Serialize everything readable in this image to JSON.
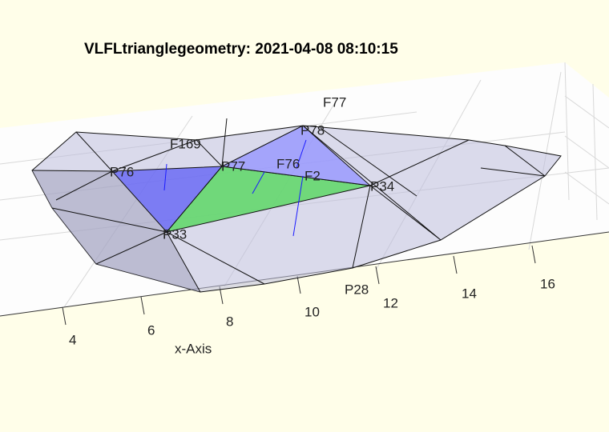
{
  "title": "VLFLtrianglegeometry: 2021-04-08 08:10:15",
  "x_axis": {
    "label": "x-Axis",
    "ticks": [
      "4",
      "6",
      "8",
      "10",
      "12",
      "14",
      "16"
    ]
  },
  "points": [
    "P76",
    "P77",
    "P78",
    "P34",
    "P33",
    "P28"
  ],
  "faces": [
    "F77",
    "F169",
    "F76",
    "F2"
  ]
}
